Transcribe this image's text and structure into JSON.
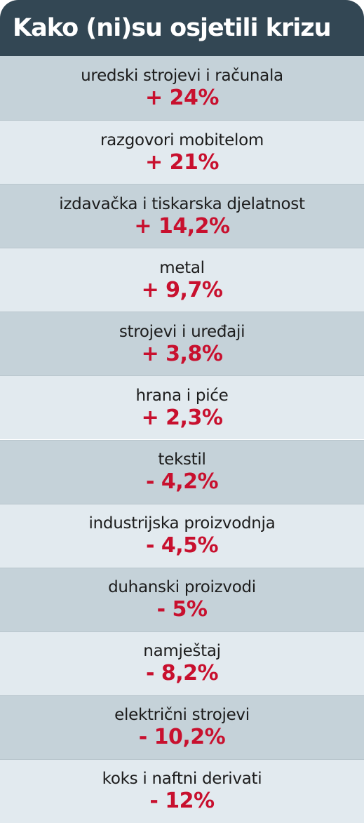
{
  "title": "Kako (ni)su osjetili krizu",
  "colors": {
    "header_bg": "#334754",
    "header_text": "#ffffff",
    "row_dark": "#c5d2d9",
    "row_light": "#e2eaef",
    "category_text": "#1c1c1c",
    "value_text": "#c8102e"
  },
  "chart_data": {
    "type": "table",
    "title": "Kako (ni)su osjetili krizu",
    "columns": [
      "category",
      "value"
    ],
    "categories": [
      "uredski strojevi i računala",
      "razgovori mobitelom",
      "izdavačka i tiskarska djelatnost",
      "metal",
      "strojevi i uređaji",
      "hrana i piće",
      "tekstil",
      "industrijska proizvodnja",
      "duhanski proizvodi",
      "namještaj",
      "električni strojevi",
      "koks i naftni derivati"
    ],
    "values": [
      24,
      21,
      14.2,
      9.7,
      3.8,
      2.3,
      -4.2,
      -4.5,
      -5,
      -8.2,
      -10.2,
      -12
    ],
    "value_labels": [
      "+ 24%",
      "+ 21%",
      "+ 14,2%",
      "+ 9,7%",
      "+ 3,8%",
      "+ 2,3%",
      "- 4,2%",
      "- 4,5%",
      "- 5%",
      "- 8,2%",
      "- 10,2%",
      "- 12%"
    ]
  }
}
